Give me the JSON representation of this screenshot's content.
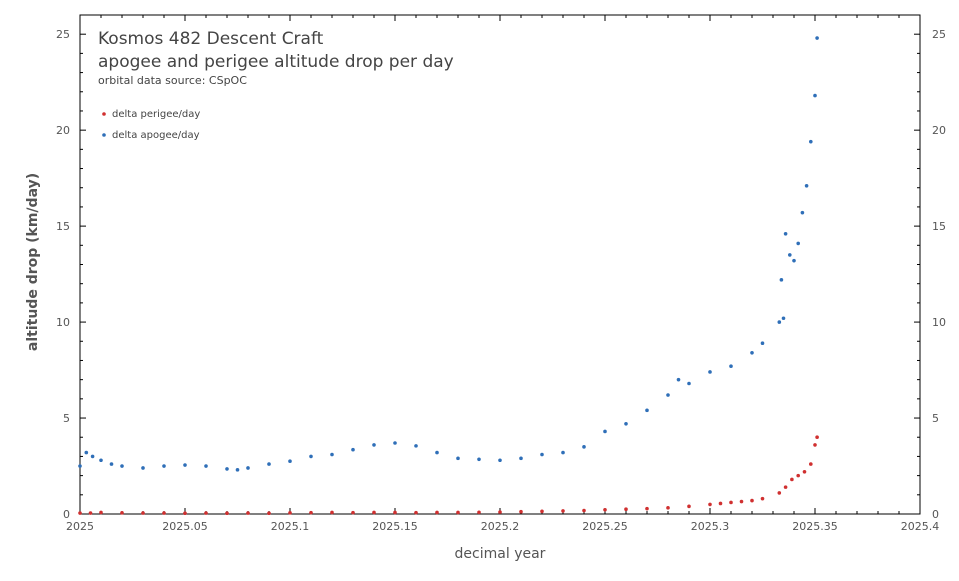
{
  "chart_data": {
    "type": "scatter",
    "title_line1": "Kosmos 482 Descent Craft",
    "title_line2": "apogee and perigee altitude drop per day",
    "subtitle": "orbital data source:  CSpOC",
    "xlabel": "decimal year",
    "ylabel": "altitude drop (km/day)",
    "xlim": [
      2025,
      2025.4
    ],
    "ylim": [
      0,
      26
    ],
    "x_ticks": [
      "2025",
      "2025.05",
      "2025.1",
      "2025.15",
      "2025.2",
      "2025.25",
      "2025.3",
      "2025.35",
      "2025.4"
    ],
    "y_ticks": [
      "0",
      "5",
      "10",
      "15",
      "20",
      "25"
    ],
    "legend_position": "top-left",
    "series": [
      {
        "name": "delta perigee/day",
        "color": "#d03030",
        "x": [
          2025.0,
          2025.005,
          2025.01,
          2025.02,
          2025.03,
          2025.04,
          2025.05,
          2025.06,
          2025.07,
          2025.08,
          2025.09,
          2025.1,
          2025.11,
          2025.12,
          2025.13,
          2025.14,
          2025.15,
          2025.16,
          2025.17,
          2025.18,
          2025.19,
          2025.2,
          2025.21,
          2025.22,
          2025.23,
          2025.24,
          2025.25,
          2025.26,
          2025.27,
          2025.28,
          2025.29,
          2025.3,
          2025.305,
          2025.31,
          2025.315,
          2025.32,
          2025.325,
          2025.333,
          2025.336,
          2025.339,
          2025.342,
          2025.345,
          2025.348,
          2025.35,
          2025.351
        ],
        "y": [
          0.05,
          0.05,
          0.08,
          0.06,
          0.05,
          0.05,
          0.04,
          0.05,
          0.04,
          0.05,
          0.04,
          0.06,
          0.07,
          0.08,
          0.07,
          0.08,
          0.08,
          0.07,
          0.08,
          0.08,
          0.09,
          0.1,
          0.12,
          0.14,
          0.16,
          0.18,
          0.22,
          0.25,
          0.28,
          0.32,
          0.4,
          0.5,
          0.55,
          0.6,
          0.65,
          0.7,
          0.8,
          1.1,
          1.4,
          1.8,
          2.0,
          2.2,
          2.6,
          3.6,
          4.0
        ]
      },
      {
        "name": "delta apogee/day",
        "color": "#2f6fb8",
        "x": [
          2025.0,
          2025.003,
          2025.006,
          2025.01,
          2025.015,
          2025.02,
          2025.03,
          2025.04,
          2025.05,
          2025.06,
          2025.07,
          2025.075,
          2025.08,
          2025.09,
          2025.1,
          2025.11,
          2025.12,
          2025.13,
          2025.14,
          2025.15,
          2025.16,
          2025.17,
          2025.18,
          2025.19,
          2025.2,
          2025.21,
          2025.22,
          2025.23,
          2025.24,
          2025.25,
          2025.26,
          2025.27,
          2025.28,
          2025.285,
          2025.29,
          2025.3,
          2025.31,
          2025.32,
          2025.325,
          2025.333,
          2025.334,
          2025.335,
          2025.336,
          2025.338,
          2025.34,
          2025.342,
          2025.344,
          2025.346,
          2025.348,
          2025.35,
          2025.351
        ],
        "y": [
          2.5,
          3.2,
          3.0,
          2.8,
          2.6,
          2.5,
          2.4,
          2.5,
          2.55,
          2.5,
          2.35,
          2.3,
          2.4,
          2.6,
          2.75,
          3.0,
          3.1,
          3.35,
          3.6,
          3.7,
          3.55,
          3.2,
          2.9,
          2.85,
          2.8,
          2.9,
          3.1,
          3.2,
          3.5,
          4.3,
          4.7,
          5.4,
          6.2,
          7.0,
          6.8,
          7.4,
          7.7,
          8.4,
          8.9,
          10.0,
          12.2,
          10.2,
          14.6,
          13.5,
          13.2,
          14.1,
          15.7,
          17.1,
          19.4,
          21.8,
          24.8
        ]
      }
    ]
  }
}
